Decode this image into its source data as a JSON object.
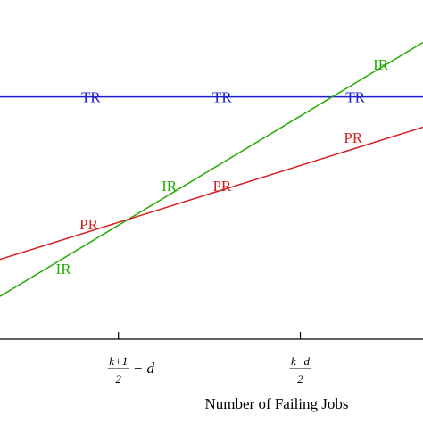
{
  "chart_data": {
    "type": "line",
    "title": "",
    "xlabel": "Number of Failing Jobs",
    "ylabel": "",
    "grid": false,
    "legend": "none",
    "xlim": [
      0,
      10
    ],
    "ylim": [
      0,
      10
    ],
    "x_ticks": [
      {
        "value": 2.8,
        "numerator": "k+1",
        "denominator": "2",
        "suffix": "− d"
      },
      {
        "value": 7.1,
        "numerator": "k−d",
        "denominator": "2",
        "suffix": ""
      }
    ],
    "series": [
      {
        "name": "TR",
        "color": "#1f1fd0",
        "points": [
          [
            0,
            7.14
          ],
          [
            10,
            7.14
          ]
        ],
        "labels": [
          [
            2.15,
            7.14
          ],
          [
            5.25,
            7.14
          ],
          [
            8.4,
            7.14
          ]
        ]
      },
      {
        "name": "IR",
        "color": "#22aa00",
        "points": [
          [
            0,
            1.26
          ],
          [
            10,
            8.75
          ]
        ],
        "labels": [
          [
            1.5,
            2.08
          ],
          [
            4.0,
            4.52
          ],
          [
            9.0,
            8.1
          ]
        ]
      },
      {
        "name": "PR",
        "color": "#d81e1e",
        "points": [
          [
            0,
            2.35
          ],
          [
            10,
            6.25
          ]
        ],
        "labels": [
          [
            2.1,
            3.4
          ],
          [
            5.25,
            4.52
          ],
          [
            8.35,
            5.95
          ]
        ]
      }
    ]
  }
}
